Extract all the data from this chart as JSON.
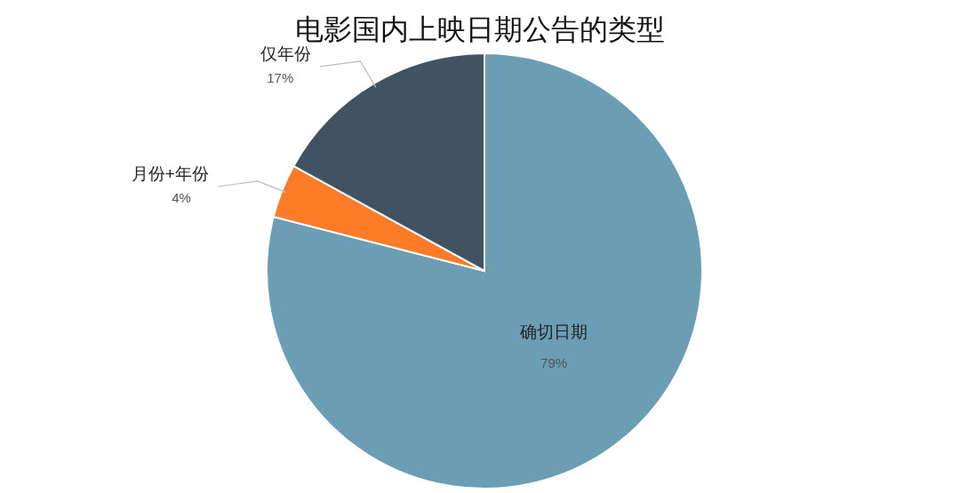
{
  "chart_data": {
    "type": "pie",
    "title": "电影国内上映日期公告的类型",
    "categories": [
      "确切日期",
      "月份+年份",
      "仅年份"
    ],
    "values": [
      79,
      4,
      17
    ],
    "value_labels": [
      "79%",
      "4%",
      "17%"
    ],
    "colors": [
      "#6b9db5",
      "#fe7b28",
      "#415263"
    ]
  }
}
